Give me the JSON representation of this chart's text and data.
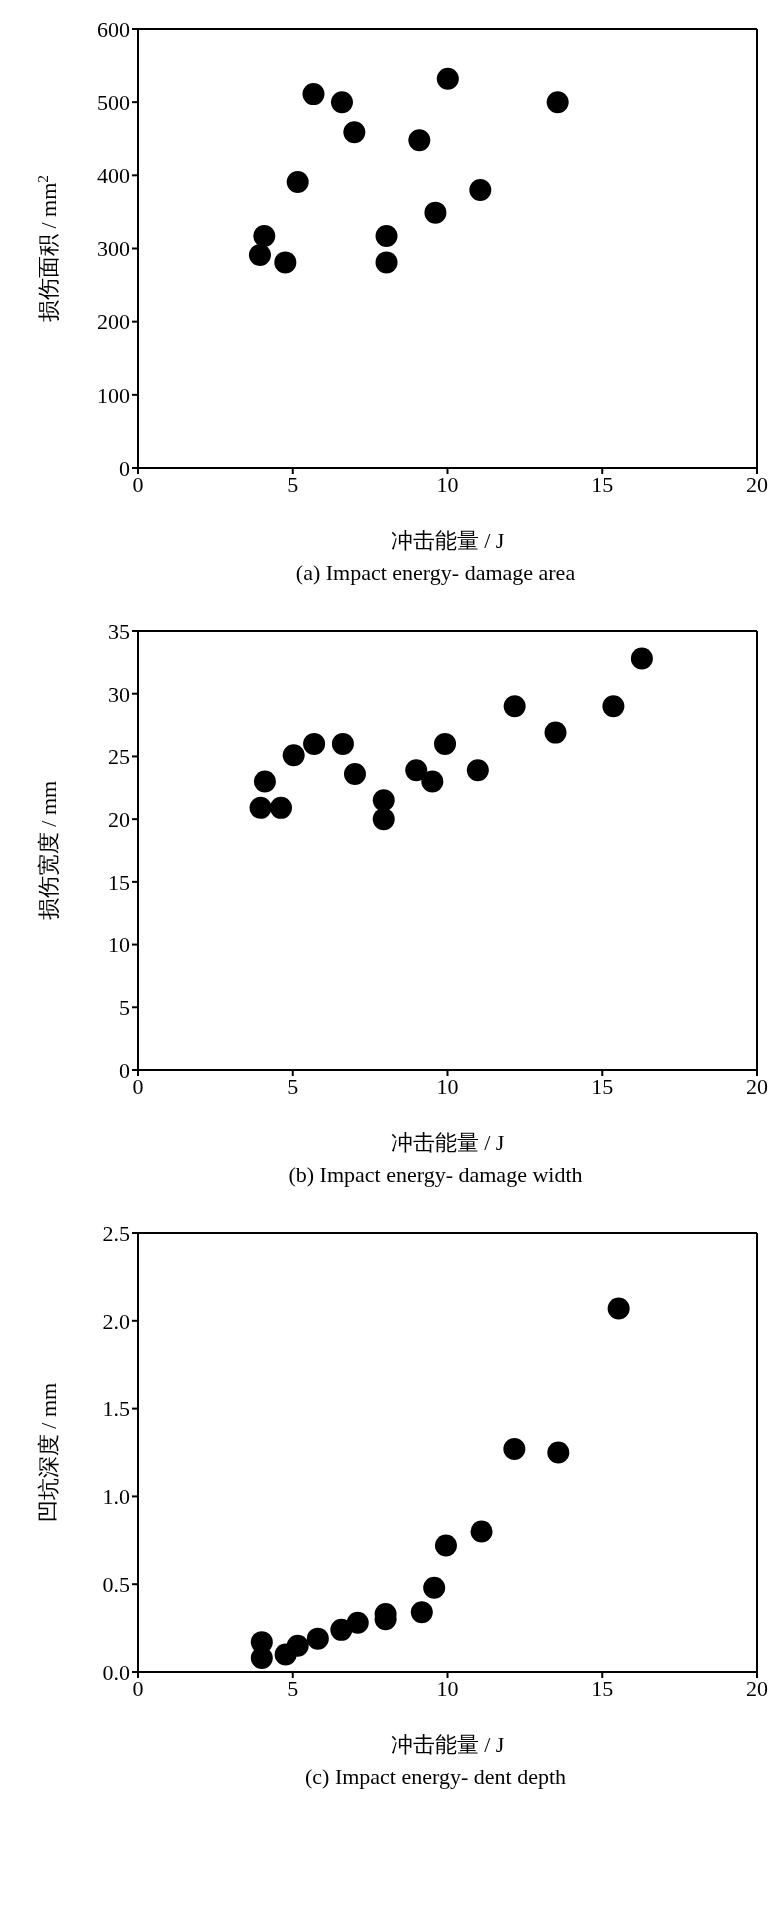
{
  "chart_data": [
    {
      "type": "scatter",
      "xlabel": "冲击能量 / J",
      "ylabel": "损伤面积 / mm$^{2}$",
      "annotations": [
        "(a) Impact energy- damage area"
      ],
      "xlim": [
        0,
        20
      ],
      "xticks": [
        0,
        5,
        10,
        15,
        20
      ],
      "ylim": [
        0,
        600
      ],
      "yticks": [
        0,
        100,
        200,
        300,
        400,
        500,
        600
      ],
      "marker": "circle",
      "series": [
        {
          "color": "#000000",
          "x": [
            3.94,
            4.08,
            4.76,
            5.16,
            5.67,
            6.59,
            6.99,
            8.03,
            8.03,
            9.09,
            9.61,
            10.01,
            11.06,
            13.56
          ],
          "values": [
            291,
            317,
            281,
            391,
            511,
            500,
            459,
            317,
            281,
            448,
            349,
            532,
            380,
            500
          ]
        }
      ]
    },
    {
      "type": "scatter",
      "xlabel": "冲击能量 / J",
      "ylabel": "损伤宽度 / mm",
      "annotations": [
        "(b) Impact energy- damage width"
      ],
      "xlim": [
        0,
        20
      ],
      "xticks": [
        0,
        5,
        10,
        15,
        20
      ],
      "ylim": [
        0,
        35
      ],
      "yticks": [
        0,
        5,
        10,
        15,
        20,
        25,
        30,
        35
      ],
      "marker": "circle",
      "series": [
        {
          "color": "#000000",
          "x": [
            3.96,
            4.1,
            4.62,
            5.03,
            5.69,
            6.62,
            7.01,
            7.94,
            7.94,
            8.99,
            9.51,
            9.92,
            10.98,
            12.17,
            13.49,
            15.36,
            16.28
          ],
          "values": [
            20.9,
            23.0,
            20.9,
            25.1,
            26.0,
            26.0,
            23.6,
            21.5,
            20.0,
            23.9,
            23.0,
            26.0,
            23.9,
            29.0,
            26.9,
            29.0,
            32.8
          ]
        }
      ]
    },
    {
      "type": "scatter",
      "xlabel": "冲击能量 / J",
      "ylabel": "凹坑深度 / mm",
      "annotations": [
        "(c) Impact energy- dent depth"
      ],
      "xlim": [
        0,
        20
      ],
      "xticks": [
        0,
        5,
        10,
        15,
        20
      ],
      "ylim": [
        0,
        2.5
      ],
      "yticks": [
        {
          "value": 0,
          "label": "0.0"
        },
        {
          "value": 0.5,
          "label": "0.5"
        },
        {
          "value": 1,
          "label": "1.0"
        },
        {
          "value": 1.5,
          "label": "1.5"
        },
        {
          "value": 2,
          "label": "2.0"
        },
        {
          "value": 2.5,
          "label": "2.5"
        }
      ],
      "marker": "circle",
      "series": [
        {
          "color": "#000000",
          "x": [
            4.0,
            4.0,
            4.77,
            5.16,
            5.81,
            6.57,
            7.1,
            8.0,
            8.0,
            9.17,
            9.57,
            9.95,
            11.1,
            12.16,
            13.58,
            15.53
          ],
          "values": [
            0.08,
            0.17,
            0.1,
            0.15,
            0.19,
            0.24,
            0.28,
            0.33,
            0.3,
            0.34,
            0.48,
            0.72,
            0.8,
            1.27,
            1.25,
            2.07
          ]
        }
      ]
    }
  ]
}
